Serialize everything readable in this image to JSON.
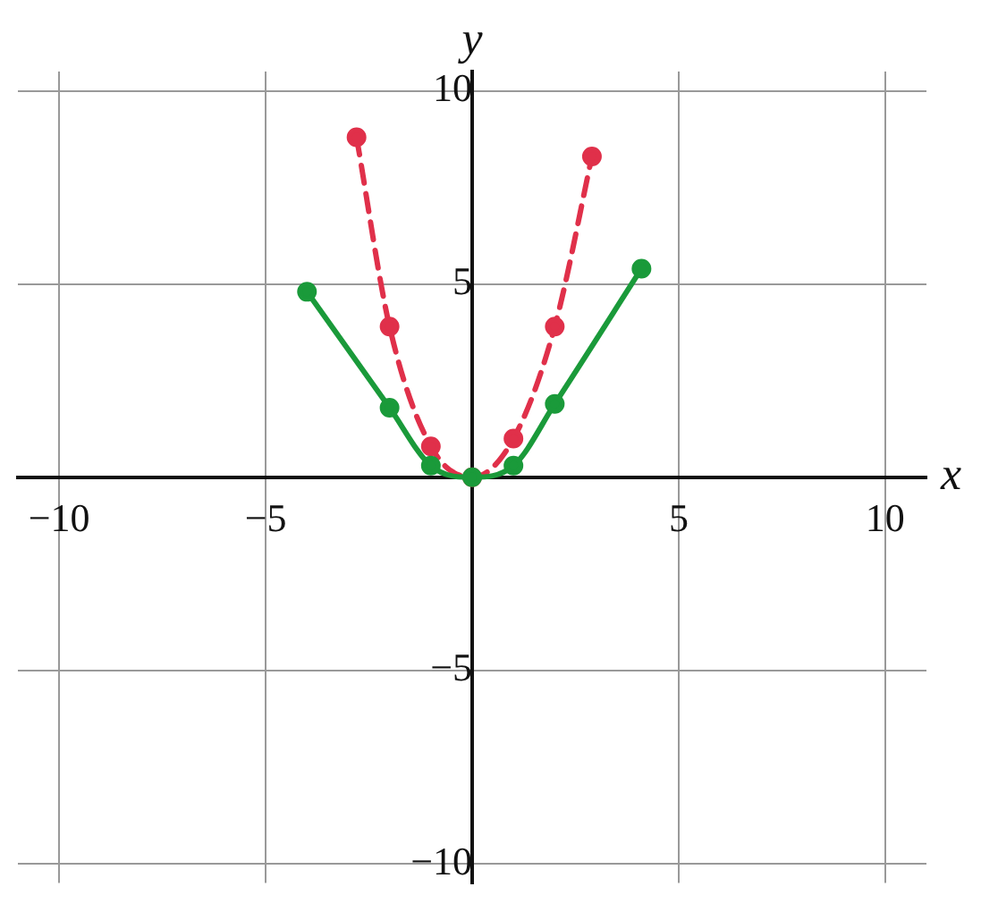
{
  "chart_data": {
    "type": "line",
    "xlabel": "x",
    "ylabel": "y",
    "xlim": [
      -11,
      11
    ],
    "ylim": [
      -10.5,
      10.5
    ],
    "xticks": [
      {
        "value": -10,
        "label": "−10"
      },
      {
        "value": -5,
        "label": "−5"
      },
      {
        "value": 0,
        "label": null
      },
      {
        "value": 5,
        "label": "5"
      },
      {
        "value": 10,
        "label": "10"
      }
    ],
    "yticks": [
      {
        "value": -10,
        "label": "−10"
      },
      {
        "value": -5,
        "label": "−5"
      },
      {
        "value": 0,
        "label": null
      },
      {
        "value": 5,
        "label": "5"
      },
      {
        "value": 10,
        "label": "10"
      }
    ],
    "grid": true,
    "marker": "circle",
    "series": [
      {
        "color": "#1a9a3a",
        "line_style": "solid",
        "x": [
          -4,
          -2,
          -1,
          0,
          1,
          2,
          4.1
        ],
        "values": [
          4.8,
          1.8,
          0.3,
          0,
          0.3,
          1.9,
          5.4
        ]
      },
      {
        "color": "#e0304a",
        "line_style": "dashed",
        "x": [
          -2.8,
          -2,
          -1,
          0,
          1,
          2,
          2.9
        ],
        "values": [
          8.8,
          3.9,
          0.8,
          0,
          1,
          3.9,
          8.3
        ]
      }
    ]
  }
}
